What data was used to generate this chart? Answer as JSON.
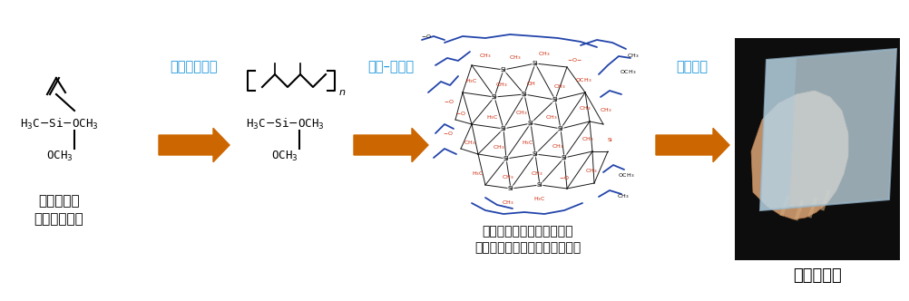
{
  "bg_color": "#ffffff",
  "arrow_color": "#cc6600",
  "label_color": "#2299dd",
  "text_color": "#000000",
  "red_color": "#cc2200",
  "blue_color": "#2244aa",
  "step1_label": "ラジカル重合",
  "step2_label": "ゾル–ゲル法",
  "step3_label": "常圧乾燥",
  "mol1_label": "アルコキシ\nシラン化合物",
  "final_label": "エアロゲル",
  "network_label": "互いに架橋した有機部位と\n無機部位からなるネットワーク"
}
